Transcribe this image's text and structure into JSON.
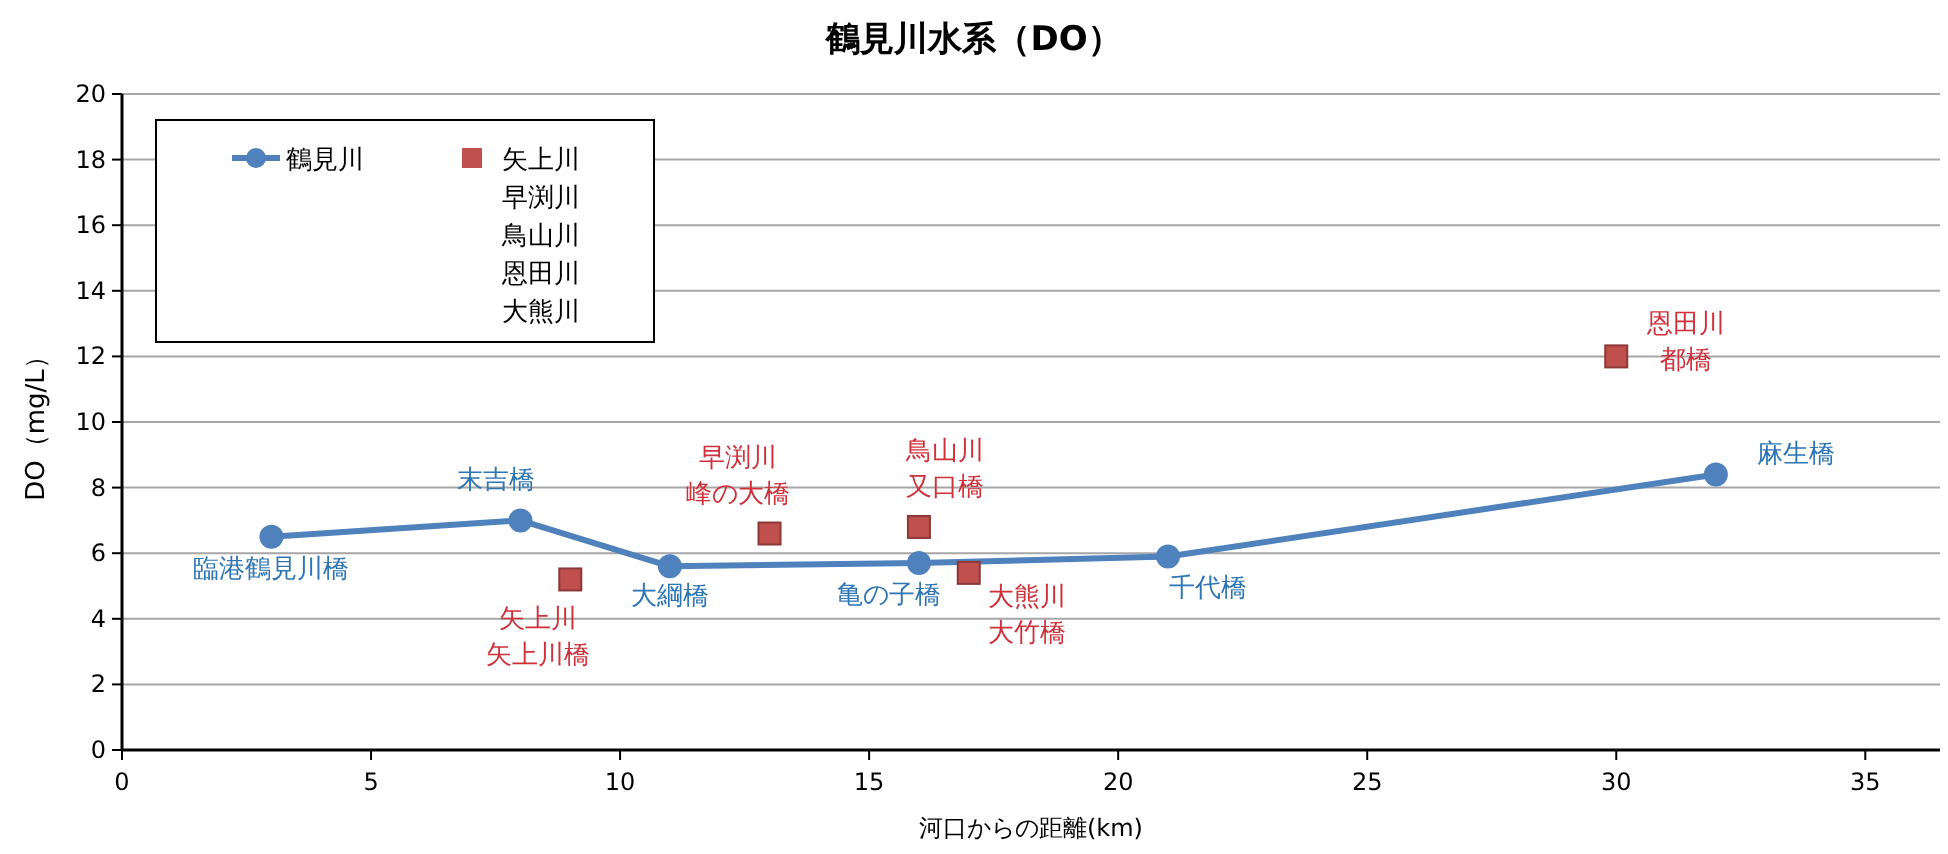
{
  "chart_data": {
    "type": "line",
    "title": "鶴見川水系（DO）",
    "xlabel": "河口からの距離(km)",
    "ylabel": "DO（mg/L）",
    "xlim": [
      0,
      36.5
    ],
    "xticks": [
      0,
      5,
      10,
      15,
      20,
      25,
      30,
      35
    ],
    "ylim": [
      0,
      20
    ],
    "yticks": [
      0,
      2,
      4,
      6,
      8,
      10,
      12,
      14,
      16,
      18,
      20
    ],
    "grid": "y",
    "legend": "top left",
    "series": [
      {
        "name": "鶴見川",
        "marker": "circle",
        "color": "#4f81bd",
        "x": [
          3,
          8,
          11,
          16,
          21,
          32
        ],
        "values": [
          6.5,
          7.0,
          5.6,
          5.7,
          5.9,
          8.4
        ],
        "value_labels": [
          "臨港鶴見川橋",
          "末吉橋",
          "大綱橋",
          "亀の子橋",
          "千代橋",
          "麻生橋"
        ]
      },
      {
        "name": "矢上川",
        "type": "scatter",
        "marker": "square",
        "color": "#c0504d",
        "x": [
          9
        ],
        "values": [
          5.2
        ],
        "value_labels": [
          "矢上川橋"
        ]
      },
      {
        "name": "早渕川",
        "type": "scatter",
        "marker": "square",
        "color": "#c0504d",
        "x": [
          13
        ],
        "values": [
          6.6
        ],
        "value_labels": [
          "峰の大橋"
        ]
      },
      {
        "name": "鳥山川",
        "type": "scatter",
        "marker": "square",
        "color": "#c0504d",
        "x": [
          16
        ],
        "values": [
          6.8
        ],
        "value_labels": [
          "又口橋"
        ]
      },
      {
        "name": "恩田川",
        "type": "scatter",
        "marker": "square",
        "color": "#c0504d",
        "x": [
          30
        ],
        "values": [
          12.0
        ],
        "value_labels": [
          "都橋"
        ]
      },
      {
        "name": "大熊川",
        "type": "scatter",
        "marker": "square",
        "color": "#c0504d",
        "x": [
          17
        ],
        "values": [
          5.4
        ],
        "value_labels": [
          "大竹橋"
        ]
      }
    ]
  }
}
